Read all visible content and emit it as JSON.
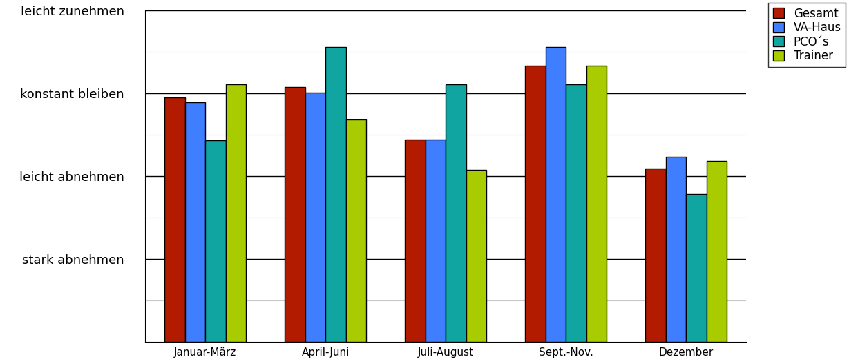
{
  "chart_data": {
    "type": "bar",
    "categories": [
      "Januar-März",
      "April-Juni",
      "Juli-August",
      "Sept.-Nov.",
      "Dezember"
    ],
    "series": [
      {
        "name": "Gesamt",
        "color": "#b31b00",
        "values": [
          2.95,
          3.07,
          2.44,
          3.33,
          2.09
        ]
      },
      {
        "name": "VA-Haus",
        "color": "#3f7fff",
        "values": [
          2.89,
          3.01,
          2.44,
          3.56,
          2.23
        ]
      },
      {
        "name": "PCO´s",
        "color": "#10a5a0",
        "values": [
          2.43,
          3.56,
          3.11,
          3.11,
          1.78
        ]
      },
      {
        "name": "Trainer",
        "color": "#a8cc00",
        "values": [
          3.11,
          2.68,
          2.07,
          3.33,
          2.18
        ]
      }
    ],
    "ylim": [
      0,
      4
    ],
    "yticks": [
      {
        "value": 1,
        "label": "stark abnehmen"
      },
      {
        "value": 2,
        "label": "leicht abnehmen"
      },
      {
        "value": 3,
        "label": "konstant bleiben"
      },
      {
        "value": 4,
        "label": "leicht zunehmen"
      }
    ],
    "grid": true,
    "legend": "upper right"
  }
}
